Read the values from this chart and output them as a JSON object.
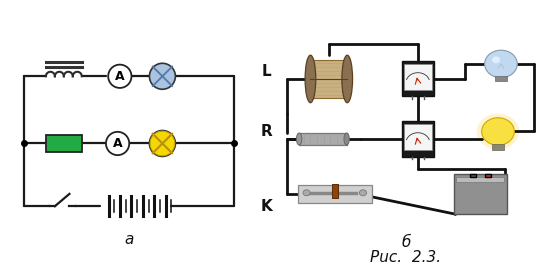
{
  "fig_width": 5.6,
  "fig_height": 2.78,
  "dpi": 100,
  "bg_color": "#ffffff",
  "label_a": "a",
  "label_b": "б",
  "caption": "Puc.  2.3.",
  "label_L": "L",
  "label_R": "R",
  "label_K": "K",
  "wire_color": "#1a1a1a",
  "wire_lw": 1.6,
  "ammeter_face": "#ffffff",
  "ammeter_edge": "#333333",
  "green_rect_color": "#22aa44",
  "lamp_blue_face": "#a8c4e0",
  "lamp_blue_x": "#5577aa",
  "lamp_yellow_face": "#f5d800",
  "lamp_yellow_x": "#b8900a",
  "inductor_color": "#2a2a2a",
  "battery_color": "#2a2a2a",
  "switch_color": "#2a2a2a"
}
